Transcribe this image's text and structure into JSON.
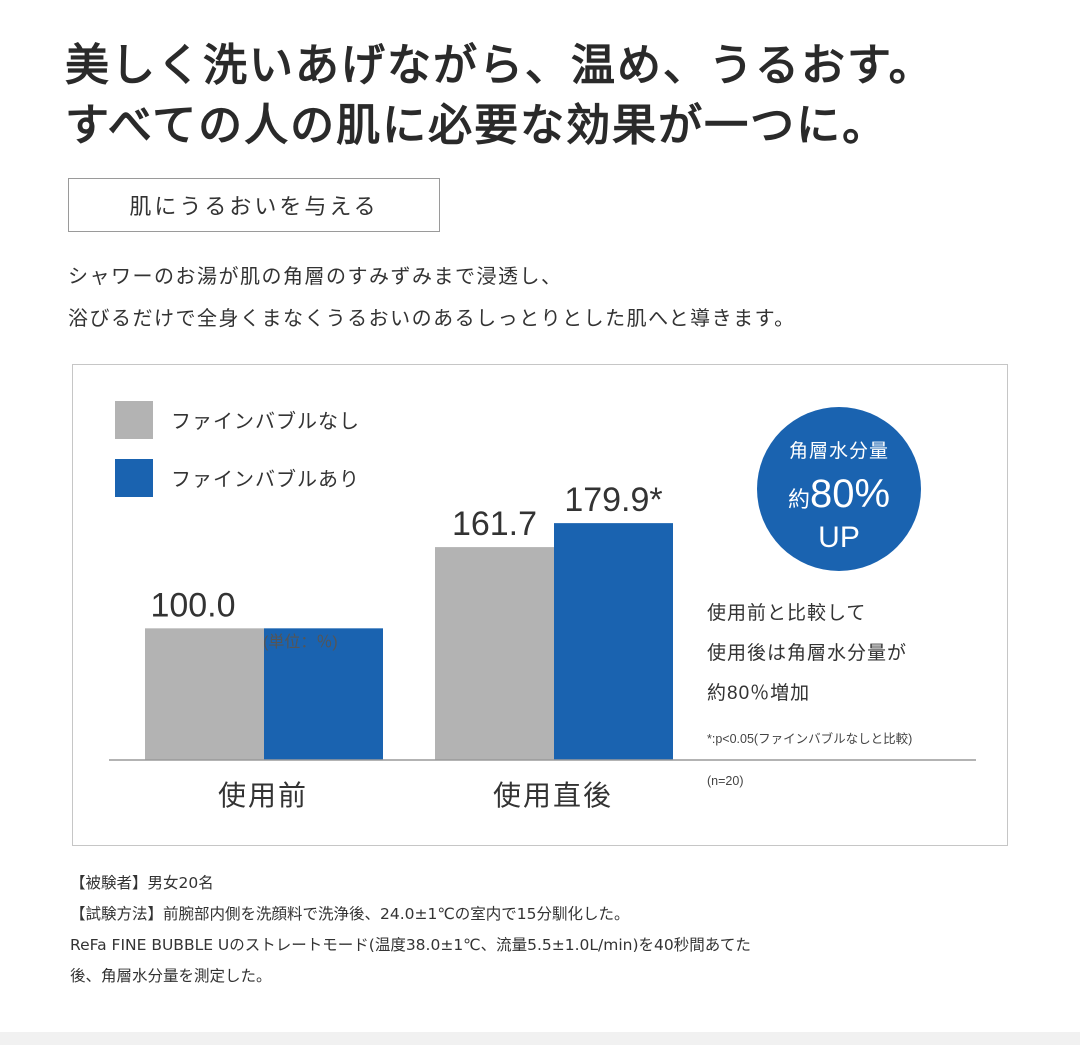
{
  "headline": {
    "line1": "美しく洗いあげながら、温め、うるおす。",
    "line2": "すべての人の肌に必要な効果が一つに。"
  },
  "tag": "肌にうるおいを与える",
  "lead": {
    "line1": "シャワーのお湯が肌の角層のすみずみまで浸透し、",
    "line2": "浴びるだけで全身くまなくうるおいのあるしっとりとした肌へと導きます。"
  },
  "chart_data": {
    "type": "bar",
    "categories": [
      "使用前",
      "使用直後"
    ],
    "series": [
      {
        "name": "ファインバブルなし",
        "values": [
          100.0,
          161.7
        ],
        "labels": [
          "100.0",
          "161.7"
        ],
        "color": "#b3b3b3"
      },
      {
        "name": "ファインバブルあり",
        "values": [
          100.0,
          179.9
        ],
        "labels": [
          "",
          "179.9*"
        ],
        "color": "#1a63b0"
      }
    ],
    "unit_note": "(単位：％)",
    "ylim": [
      0,
      180
    ],
    "grid": false,
    "legend_position": "top-left",
    "badge": {
      "line1": "角層水分量",
      "prefix": "約",
      "value": "80%",
      "suffix": "UP",
      "color": "#1a63b0"
    },
    "description": [
      "使用前と比較して",
      "使用後は角層水分量が",
      "約80％増加"
    ],
    "footnote": "*:p<0.05(ファインバブルなしと比較)",
    "sample_size": "(n=20)"
  },
  "notes": [
    "【被験者】男女20名",
    "【試験方法】前腕部内側を洗顔料で洗浄後、24.0±1℃の室内で15分馴化した。",
    "ReFa FINE BUBBLE Uのストレートモード(温度38.0±1℃、流量5.5±1.0L/min)を40秒間あてた",
    "後、角層水分量を測定した。"
  ]
}
